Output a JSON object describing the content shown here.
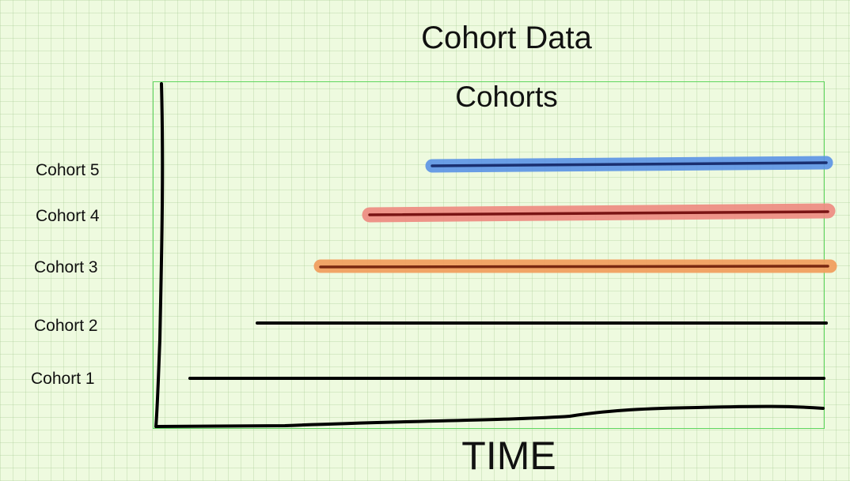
{
  "title": "Cohort Data",
  "subtitle": "Cohorts",
  "x_axis_label": "TIME",
  "cohorts": [
    {
      "label": "Cohort 5",
      "highlight": "#5b93e6",
      "line": "#1a2f70"
    },
    {
      "label": "Cohort 4",
      "highlight": "#ef8a80",
      "line": "#7a1414"
    },
    {
      "label": "Cohort 3",
      "highlight": "#f2a060",
      "line": "#7a2810"
    },
    {
      "label": "Cohort 2",
      "highlight": null,
      "line": "#000000"
    },
    {
      "label": "Cohort 1",
      "highlight": null,
      "line": "#000000"
    }
  ],
  "colors": {
    "background": "#eefadf",
    "frame": "#5fd65f",
    "axis": "#000000"
  }
}
